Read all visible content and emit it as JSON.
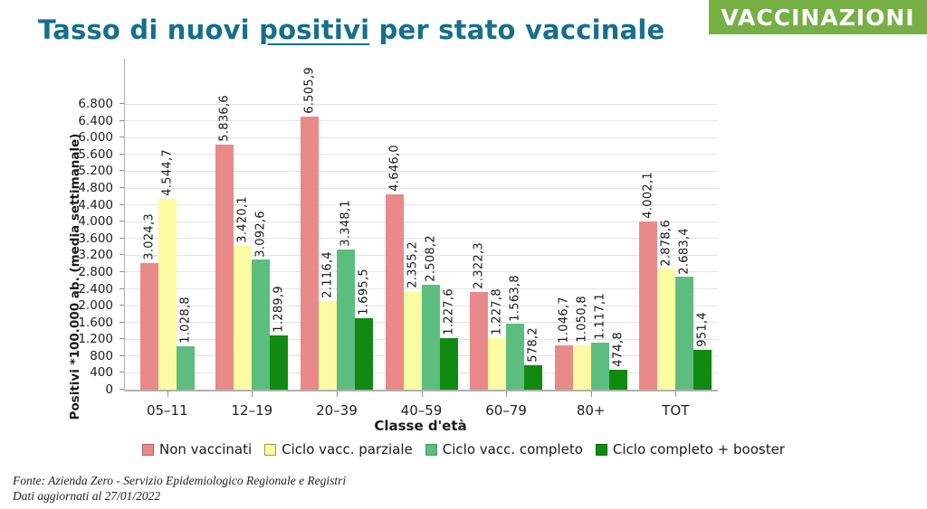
{
  "header": {
    "title_part1": "Tasso di nuovi ",
    "title_underlined": "positivi",
    "title_part2": " per stato vaccinale",
    "badge": "VACCINAZIONI"
  },
  "colors": {
    "title_teal": "#156f8d",
    "badge_green": "#76b045",
    "axis_gray": "#b0b0b0",
    "gridline_gray": "#e3e3e3"
  },
  "chart_data": {
    "type": "bar",
    "title": "",
    "xlabel": "Classe d'età",
    "ylabel": "Positivi *100.000 ab. (media settimanale)",
    "categories": [
      "05–11",
      "12–19",
      "20–39",
      "40–59",
      "60–79",
      "80+",
      "TOT"
    ],
    "series": [
      {
        "name": "Non vaccinati",
        "color": "#e98989",
        "border": "#b05f5f",
        "values": [
          3024.3,
          5836.6,
          6505.9,
          4646.0,
          2322.3,
          1046.7,
          4002.1
        ],
        "labels": [
          "3.024,3",
          "5.836,6",
          "6.505,9",
          "4.646,0",
          "2.322,3",
          "1.046,7",
          "4.002,1"
        ]
      },
      {
        "name": "Ciclo vacc. parziale",
        "color": "#fbfba1",
        "border": "#9a9a55",
        "values": [
          4544.7,
          3420.1,
          2116.4,
          2355.2,
          1227.8,
          1050.8,
          2878.6
        ],
        "labels": [
          "4.544,7",
          "3.420,1",
          "2.116,4",
          "2.355,2",
          "1.227,8",
          "1.050,8",
          "2.878,6"
        ]
      },
      {
        "name": "Ciclo vacc. completo",
        "color": "#5dbd7f",
        "border": "#3f9a63",
        "values": [
          1028.8,
          3092.6,
          3348.1,
          2508.2,
          1563.8,
          1117.1,
          2683.4
        ],
        "labels": [
          "1.028,8",
          "3.092,6",
          "3.348,1",
          "2.508,2",
          "1.563,8",
          "1.117,1",
          "2.683,4"
        ]
      },
      {
        "name": "Ciclo completo + booster",
        "color": "#108a10",
        "border": "#0a6b0a",
        "values": [
          null,
          1289.9,
          1695.5,
          1227.6,
          578.2,
          474.8,
          951.4
        ],
        "labels": [
          null,
          "1.289,9",
          "1.695,5",
          "1.227,6",
          "578,2",
          "474,8",
          "951,4"
        ]
      }
    ],
    "ylim": [
      0,
      7880
    ],
    "ytick_step": 400,
    "ytick_labels": [
      "0",
      "400",
      "800",
      "1.200",
      "1.600",
      "2.000",
      "2.400",
      "2.800",
      "3.200",
      "3.600",
      "4.000",
      "4.400",
      "4.800",
      "5.200",
      "5.600",
      "6.000",
      "6.400",
      "6.800"
    ],
    "grid": true,
    "legend_position": "bottom"
  },
  "footer": {
    "source": "Fonte: Azienda Zero - Servizio Epidemiologico Regionale e Registri",
    "updated": "Dati aggiornati al 27/01/2022"
  }
}
